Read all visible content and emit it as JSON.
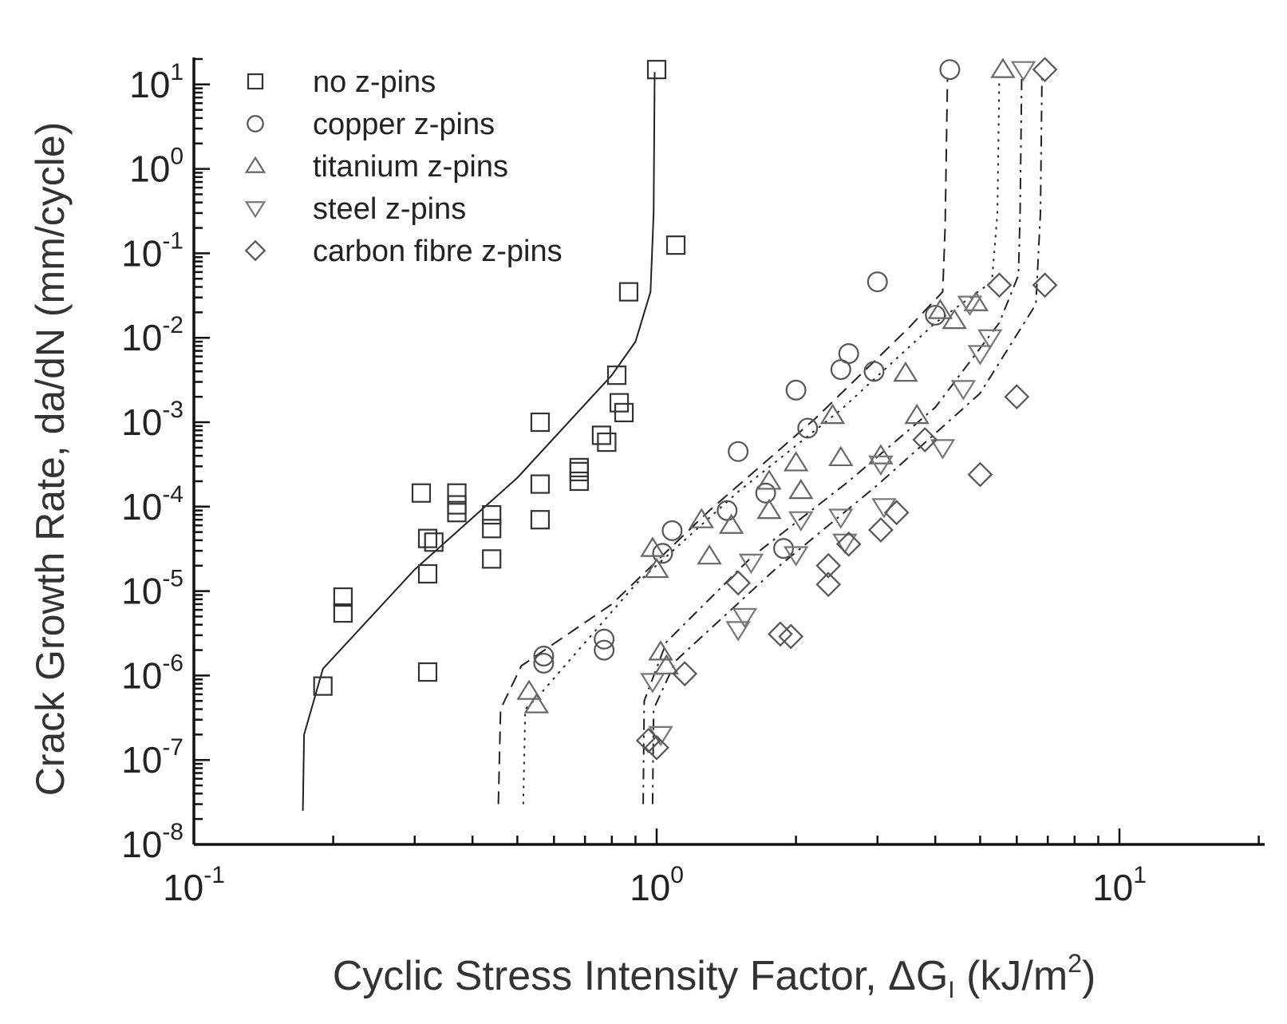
{
  "chart_data": {
    "type": "scatter",
    "title": "",
    "xlabel_main": "Cyclic Stress Intensity Factor, ",
    "xlabel_symbol": "ΔG",
    "xlabel_subscript": "I",
    "xlabel_units": " (kJ/m",
    "xlabel_units_exp": "2",
    "xlabel_close": ")",
    "ylabel": "Crack Growth Rate, da/dN (mm/cycle)",
    "xscale": "log",
    "yscale": "log",
    "xlim": [
      0.1,
      20
    ],
    "ylim": [
      1e-08,
      20
    ],
    "x_ticks": [
      {
        "value": 0.1,
        "base": "10",
        "exp": "-1"
      },
      {
        "value": 1,
        "base": "10",
        "exp": "0"
      },
      {
        "value": 10,
        "base": "10",
        "exp": "1"
      }
    ],
    "y_ticks": [
      {
        "value": 10,
        "base": "10",
        "exp": "1"
      },
      {
        "value": 1,
        "base": "10",
        "exp": "0"
      },
      {
        "value": 0.1,
        "base": "10",
        "exp": "-1"
      },
      {
        "value": 0.01,
        "base": "10",
        "exp": "-2"
      },
      {
        "value": 0.001,
        "base": "10",
        "exp": "-3"
      },
      {
        "value": 0.0001,
        "base": "10",
        "exp": "-4"
      },
      {
        "value": 1e-05,
        "base": "10",
        "exp": "-5"
      },
      {
        "value": 1e-06,
        "base": "10",
        "exp": "-6"
      },
      {
        "value": 1e-07,
        "base": "10",
        "exp": "-7"
      },
      {
        "value": 1e-08,
        "base": "10",
        "exp": "-8"
      }
    ],
    "legend_position": "top-left",
    "series": [
      {
        "name": "no z-pins",
        "marker": "square",
        "color": "#333333",
        "points": [
          [
            0.19,
            7.5e-07
          ],
          [
            0.21,
            8.5e-06
          ],
          [
            0.21,
            5.5e-06
          ],
          [
            0.31,
            0.000145
          ],
          [
            0.32,
            4.2e-05
          ],
          [
            0.33,
            3.8e-05
          ],
          [
            0.32,
            1.6e-05
          ],
          [
            0.32,
            1.1e-06
          ],
          [
            0.37,
            0.000145
          ],
          [
            0.37,
            0.000105
          ],
          [
            0.37,
            8.5e-05
          ],
          [
            0.44,
            8e-05
          ],
          [
            0.44,
            5.5e-05
          ],
          [
            0.44,
            2.4e-05
          ],
          [
            0.56,
            0.001
          ],
          [
            0.56,
            0.000185
          ],
          [
            0.56,
            7e-05
          ],
          [
            0.68,
            0.00029
          ],
          [
            0.68,
            0.00026
          ],
          [
            0.68,
            0.0002
          ],
          [
            0.76,
            0.0007
          ],
          [
            0.78,
            0.00058
          ],
          [
            0.82,
            0.0036
          ],
          [
            0.83,
            0.0017
          ],
          [
            0.85,
            0.0013
          ],
          [
            0.87,
            0.035
          ],
          [
            1.1,
            0.125
          ],
          [
            1.0,
            15
          ]
        ]
      },
      {
        "name": "copper z-pins",
        "marker": "circle",
        "color": "#555555",
        "points": [
          [
            0.57,
            1.7e-06
          ],
          [
            0.57,
            1.4e-06
          ],
          [
            0.77,
            2.7e-06
          ],
          [
            0.77,
            2e-06
          ],
          [
            1.03,
            2.8e-05
          ],
          [
            1.08,
            5.2e-05
          ],
          [
            1.42,
            9e-05
          ],
          [
            1.5,
            0.00045
          ],
          [
            1.72,
            0.000145
          ],
          [
            1.88,
            3.2e-05
          ],
          [
            2.0,
            0.0024
          ],
          [
            2.12,
            0.00085
          ],
          [
            2.5,
            0.0042
          ],
          [
            2.6,
            0.0065
          ],
          [
            2.95,
            0.004
          ],
          [
            3.0,
            0.046
          ],
          [
            4.0,
            0.0185
          ],
          [
            4.3,
            15
          ]
        ]
      },
      {
        "name": "titanium z-pins",
        "marker": "triangle-up",
        "color": "#666666",
        "points": [
          [
            0.53,
            6.5e-07
          ],
          [
            0.55,
            4.5e-07
          ],
          [
            0.98,
            3.2e-05
          ],
          [
            1.0,
            1.8e-05
          ],
          [
            1.02,
            1.9e-06
          ],
          [
            1.05,
            1.3e-06
          ],
          [
            1.25,
            7e-05
          ],
          [
            1.3,
            2.6e-05
          ],
          [
            1.45,
            6e-05
          ],
          [
            1.75,
            0.0002
          ],
          [
            1.75,
            9e-05
          ],
          [
            2.0,
            0.00033
          ],
          [
            2.05,
            0.000155
          ],
          [
            2.4,
            0.0012
          ],
          [
            2.5,
            0.00038
          ],
          [
            3.05,
            0.0004
          ],
          [
            3.45,
            0.0038
          ],
          [
            3.65,
            0.0012
          ],
          [
            4.1,
            0.021
          ],
          [
            4.4,
            0.016
          ],
          [
            4.9,
            0.026
          ],
          [
            5.6,
            15
          ]
        ]
      },
      {
        "name": "steel z-pins",
        "marker": "triangle-down",
        "color": "#777777",
        "points": [
          [
            0.98,
            8.5e-07
          ],
          [
            1.02,
            2e-07
          ],
          [
            1.6,
            2.2e-05
          ],
          [
            1.55,
            5e-06
          ],
          [
            1.5,
            3.5e-06
          ],
          [
            2.05,
            7e-05
          ],
          [
            2.0,
            2.7e-05
          ],
          [
            2.5,
            7.5e-05
          ],
          [
            2.55,
            3.8e-05
          ],
          [
            3.05,
            0.00032
          ],
          [
            3.1,
            0.0001
          ],
          [
            4.15,
            0.0005
          ],
          [
            4.6,
            0.0025
          ],
          [
            5.0,
            0.0065
          ],
          [
            5.25,
            0.01
          ],
          [
            4.75,
            0.025
          ],
          [
            6.2,
            15
          ]
        ]
      },
      {
        "name": "carbon fibre z-pins",
        "marker": "diamond",
        "color": "#555555",
        "points": [
          [
            0.96,
            1.7e-07
          ],
          [
            1.0,
            1.4e-07
          ],
          [
            1.15,
            1.05e-06
          ],
          [
            1.5,
            1.25e-05
          ],
          [
            1.85,
            3.1e-06
          ],
          [
            1.95,
            2.9e-06
          ],
          [
            2.35,
            2e-05
          ],
          [
            2.35,
            1.2e-05
          ],
          [
            2.6,
            3.6e-05
          ],
          [
            3.05,
            5.3e-05
          ],
          [
            3.3,
            8.5e-05
          ],
          [
            3.8,
            0.00062
          ],
          [
            5.0,
            0.00024
          ],
          [
            6.0,
            0.002
          ],
          [
            5.5,
            0.042
          ],
          [
            6.9,
            0.042
          ],
          [
            6.9,
            15
          ]
        ]
      }
    ],
    "fit_curves": [
      {
        "name": "no z-pins fit",
        "style": "solid",
        "points": [
          [
            0.172,
            2.5e-08
          ],
          [
            0.173,
            2e-07
          ],
          [
            0.19,
            1.2e-06
          ],
          [
            0.3,
            1.8e-05
          ],
          [
            0.5,
            0.00022
          ],
          [
            0.8,
            0.0036
          ],
          [
            0.9,
            0.009
          ],
          [
            0.97,
            0.035
          ],
          [
            0.985,
            0.3
          ],
          [
            0.99,
            14
          ]
        ]
      },
      {
        "name": "copper z-pins fit",
        "style": "dashed",
        "points": [
          [
            0.455,
            3e-08
          ],
          [
            0.46,
            4e-07
          ],
          [
            0.51,
            1.3e-06
          ],
          [
            0.8,
            7e-06
          ],
          [
            1.3,
            9e-05
          ],
          [
            2.2,
            0.0011
          ],
          [
            3.5,
            0.013
          ],
          [
            4.15,
            0.035
          ],
          [
            4.2,
            0.2
          ],
          [
            4.25,
            12
          ]
        ]
      },
      {
        "name": "titanium z-pins fit",
        "style": "dotted",
        "points": [
          [
            0.515,
            3e-08
          ],
          [
            0.52,
            4e-07
          ],
          [
            0.56,
            6e-07
          ],
          [
            0.9,
            1.2e-05
          ],
          [
            1.5,
            0.00015
          ],
          [
            2.5,
            0.0014
          ],
          [
            4.0,
            0.015
          ],
          [
            5.3,
            0.046
          ],
          [
            5.45,
            0.3
          ],
          [
            5.5,
            12
          ]
        ]
      },
      {
        "name": "steel z-pins fit",
        "style": "dash-dot",
        "points": [
          [
            0.935,
            3e-08
          ],
          [
            0.94,
            5e-07
          ],
          [
            1.05,
            2.5e-06
          ],
          [
            1.6,
            2.5e-05
          ],
          [
            2.6,
            0.0002
          ],
          [
            4.0,
            0.0015
          ],
          [
            5.5,
            0.015
          ],
          [
            6.05,
            0.055
          ],
          [
            6.1,
            0.3
          ],
          [
            6.15,
            12
          ]
        ]
      },
      {
        "name": "carbon fibre z-pins fit",
        "style": "dash-dot",
        "points": [
          [
            0.98,
            3e-08
          ],
          [
            0.985,
            4e-07
          ],
          [
            1.1,
            1.5e-06
          ],
          [
            1.8,
            1.8e-05
          ],
          [
            3.0,
            0.00018
          ],
          [
            5.0,
            0.0022
          ],
          [
            6.6,
            0.025
          ],
          [
            6.75,
            0.3
          ],
          [
            6.8,
            12
          ]
        ]
      }
    ]
  }
}
